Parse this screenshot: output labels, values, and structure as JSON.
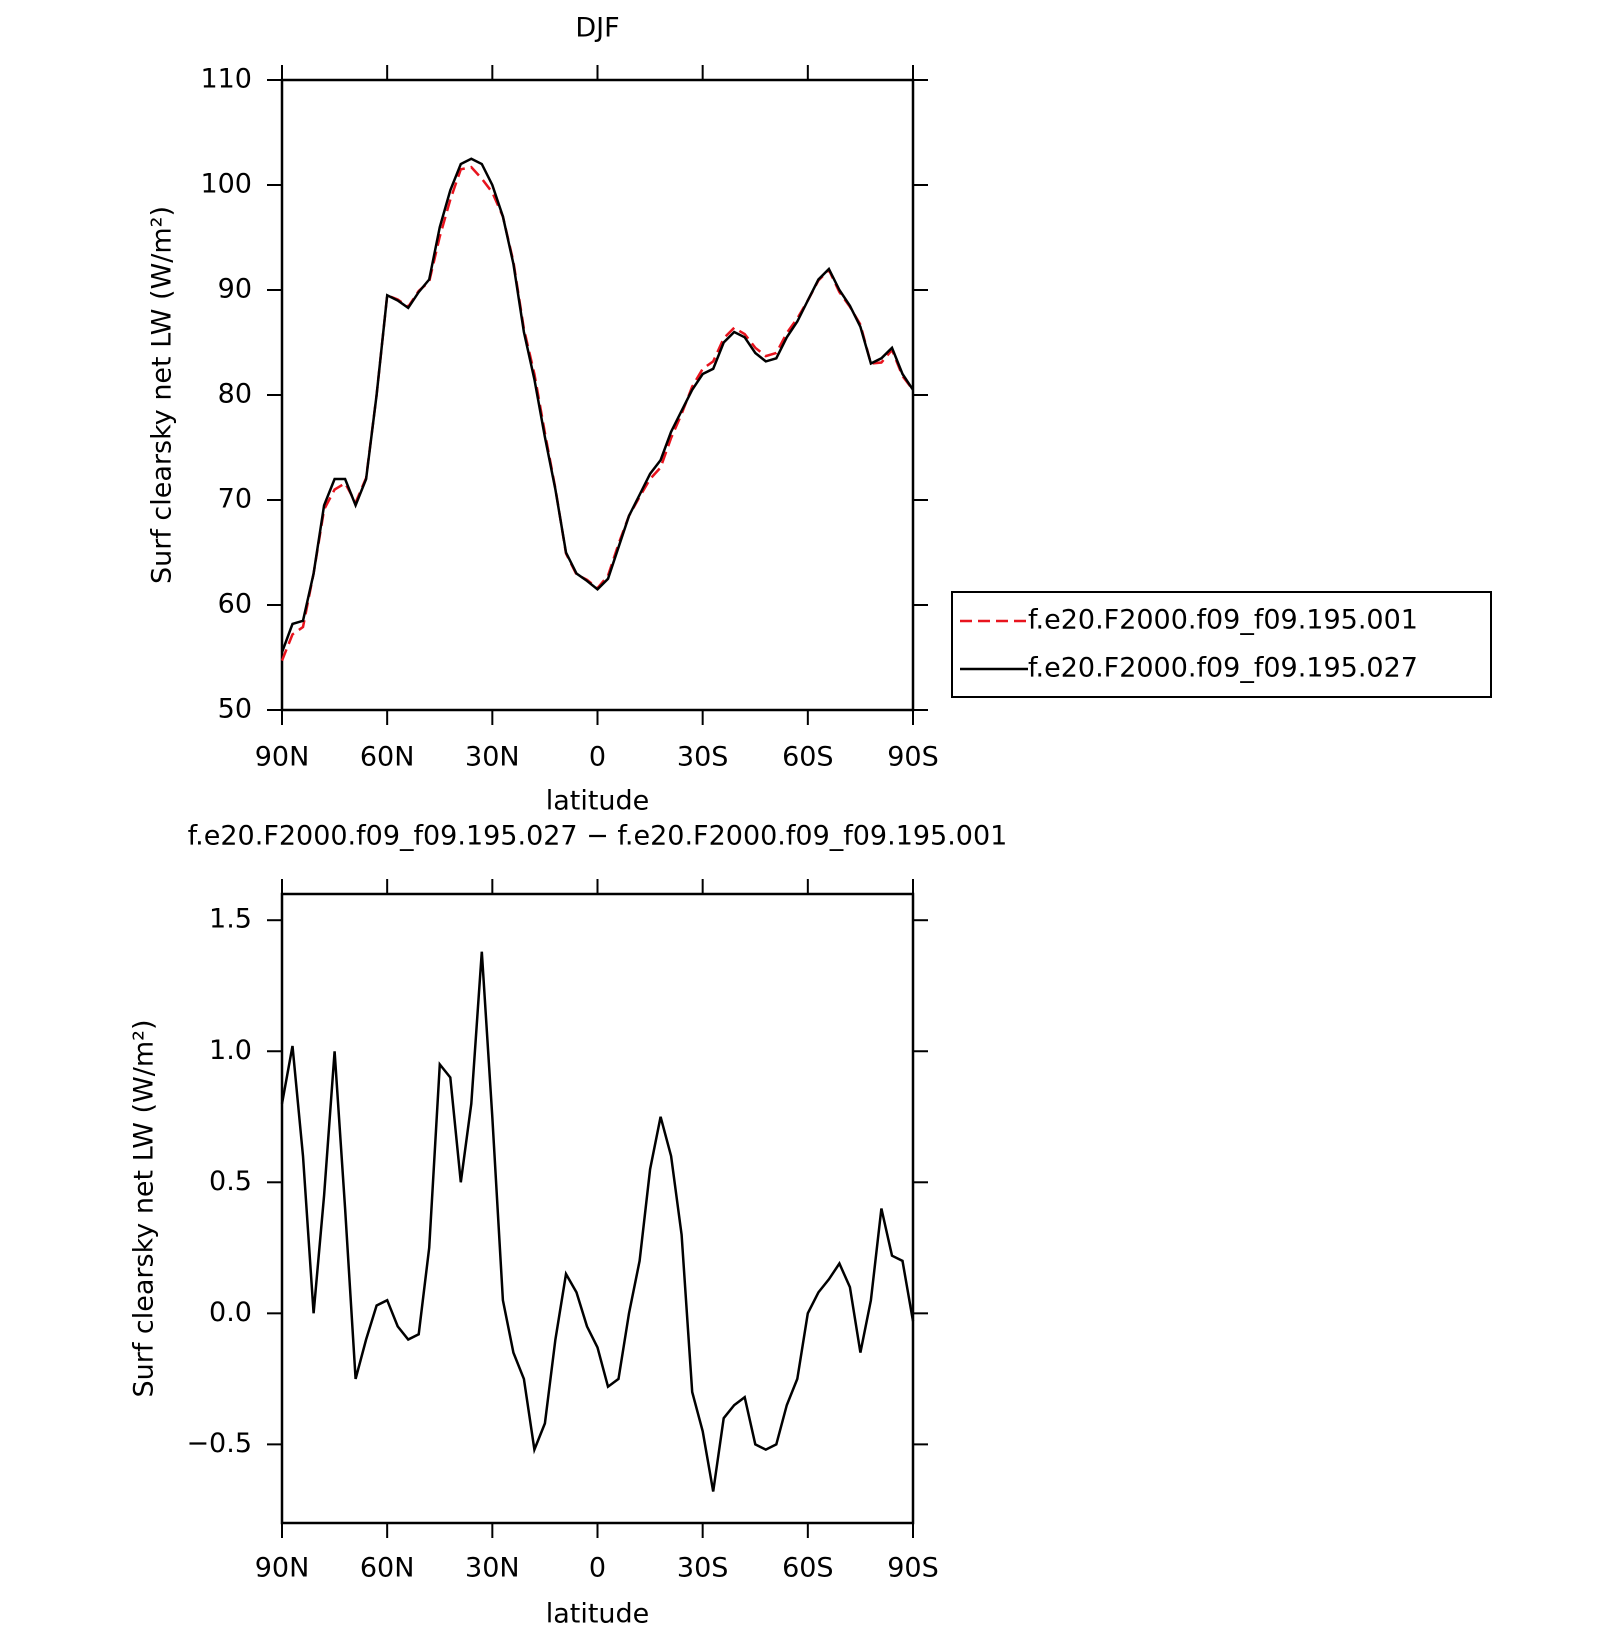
{
  "chart_data": [
    {
      "type": "line",
      "title": "DJF",
      "xlabel": "latitude",
      "ylabel": "Surf clearsky net LW (W/m²)",
      "x": [
        90,
        87,
        84,
        81,
        78,
        75,
        72,
        69,
        66,
        63,
        60,
        57,
        54,
        51,
        48,
        45,
        42,
        39,
        36,
        33,
        30,
        27,
        24,
        21,
        18,
        15,
        12,
        9,
        6,
        3,
        0,
        -3,
        -6,
        -9,
        -12,
        -15,
        -18,
        -21,
        -24,
        -27,
        -30,
        -33,
        -36,
        -39,
        -42,
        -45,
        -48,
        -51,
        -54,
        -57,
        -60,
        -63,
        -66,
        -69,
        -72,
        -75,
        -78,
        -81,
        -84,
        -87,
        -90
      ],
      "series": [
        {
          "name": "f.e20.F2000.f09_f09.195.001",
          "color": "#e8141e",
          "line_style": "dashed",
          "values": [
            54.7,
            57.2,
            57.9,
            63,
            69.1,
            71,
            71.6,
            69.75,
            72.1,
            80,
            89.5,
            89.1,
            88.4,
            89.9,
            90.8,
            95.1,
            98.6,
            101.5,
            101.7,
            100.6,
            99.3,
            97,
            92.7,
            86.3,
            82,
            76.4,
            71.1,
            64.9,
            62.9,
            62.4,
            61.6,
            62.8,
            65.8,
            68.5,
            70.3,
            72,
            73.1,
            75.9,
            78.2,
            80.8,
            82.5,
            83.2,
            85.4,
            86.4,
            85.8,
            84.5,
            83.7,
            84,
            85.9,
            87.3,
            89,
            90.9,
            91.9,
            89.8,
            88.4,
            86.7,
            83,
            83.1,
            84.3,
            81.8,
            80.5
          ]
        },
        {
          "name": "f.e20.F2000.f09_f09.195.027",
          "color": "#000000",
          "line_style": "solid",
          "values": [
            55.5,
            58.2,
            58.5,
            63,
            69.5,
            72,
            72,
            69.5,
            72,
            80,
            89.5,
            89,
            88.3,
            89.8,
            91,
            96,
            99.5,
            102,
            102.5,
            102,
            100,
            97,
            92.5,
            86,
            81.5,
            76,
            71,
            65,
            63,
            62.3,
            61.5,
            62.5,
            65.5,
            68.5,
            70.5,
            72.5,
            73.8,
            76.5,
            78.5,
            80.5,
            82,
            82.5,
            85,
            86,
            85.5,
            84,
            83.2,
            83.5,
            85.5,
            87,
            89,
            91,
            92,
            90,
            88.5,
            86.5,
            83,
            83.5,
            84.5,
            82,
            80.5
          ]
        }
      ],
      "xlim": [
        90,
        -90
      ],
      "xticks": [
        {
          "value": 90,
          "label": "90N"
        },
        {
          "value": 60,
          "label": "60N"
        },
        {
          "value": 30,
          "label": "30N"
        },
        0,
        {
          "value": -30,
          "label": "30S"
        },
        {
          "value": -60,
          "label": "60S"
        },
        {
          "value": -90,
          "label": "90S"
        }
      ],
      "ylim": [
        50,
        110
      ],
      "yticks": [
        50,
        60,
        70,
        80,
        90,
        100,
        110
      ],
      "grid": false,
      "legend": "right"
    },
    {
      "type": "line",
      "title": "f.e20.F2000.f09_f09.195.027 − f.e20.F2000.f09_f09.195.001",
      "xlabel": "latitude",
      "ylabel": "Surf clearsky net LW (W/m²)",
      "x": [
        90,
        87,
        84,
        81,
        78,
        75,
        72,
        69,
        66,
        63,
        60,
        57,
        54,
        51,
        48,
        45,
        42,
        39,
        36,
        33,
        30,
        27,
        24,
        21,
        18,
        15,
        12,
        9,
        6,
        3,
        0,
        -3,
        -6,
        -9,
        -12,
        -15,
        -18,
        -21,
        -24,
        -27,
        -30,
        -33,
        -36,
        -39,
        -42,
        -45,
        -48,
        -51,
        -54,
        -57,
        -60,
        -63,
        -66,
        -69,
        -72,
        -75,
        -78,
        -81,
        -84,
        -87,
        -90
      ],
      "color": "#000000",
      "values": [
        0.8,
        1.02,
        0.6,
        0,
        0.45,
        1,
        0.4,
        -0.25,
        -0.1,
        0.03,
        0.05,
        -0.05,
        -0.1,
        -0.08,
        0.25,
        0.95,
        0.9,
        0.5,
        0.8,
        1.38,
        0.75,
        0.05,
        -0.15,
        -0.25,
        -0.52,
        -0.42,
        -0.1,
        0.15,
        0.08,
        -0.05,
        -0.13,
        -0.28,
        -0.25,
        0,
        0.2,
        0.55,
        0.75,
        0.6,
        0.3,
        -0.3,
        -0.45,
        -0.68,
        -0.4,
        -0.35,
        -0.32,
        -0.5,
        -0.52,
        -0.5,
        -0.35,
        -0.25,
        0,
        0.08,
        0.13,
        0.19,
        0.1,
        -0.15,
        0.05,
        0.4,
        0.22,
        0.2,
        -0.03
      ],
      "xlim": [
        90,
        -90
      ],
      "xticks": [
        {
          "value": 90,
          "label": "90N"
        },
        {
          "value": 60,
          "label": "60N"
        },
        {
          "value": 30,
          "label": "30N"
        },
        0,
        {
          "value": -30,
          "label": "30S"
        },
        {
          "value": -60,
          "label": "60S"
        },
        {
          "value": -90,
          "label": "90S"
        }
      ],
      "ylim": [
        -0.8,
        1.6
      ],
      "yticks": [
        {
          "value": -0.5,
          "label": "−0.5"
        },
        {
          "value": 0,
          "label": "0.0"
        },
        0.5,
        {
          "value": 1,
          "label": "1.0"
        },
        1.5
      ],
      "grid": false
    }
  ]
}
